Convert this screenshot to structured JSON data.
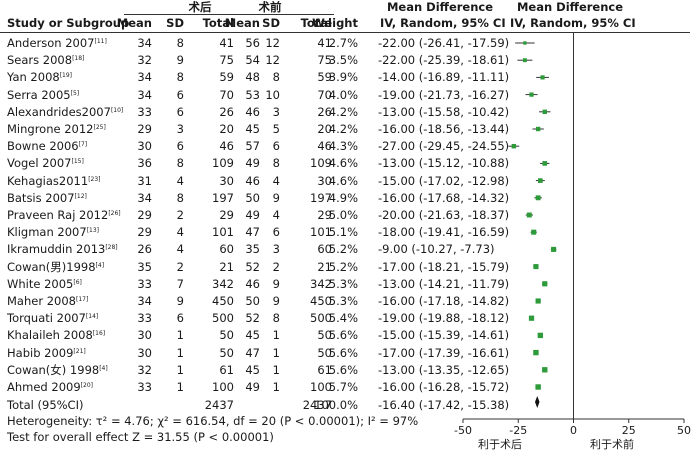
{
  "header": {
    "group_exp": "术后",
    "group_ctrl": "术前",
    "col_study": "Study or Subgroup",
    "col_mean": "Mean",
    "col_sd": "SD",
    "col_total": "Total",
    "col_weight": "Weight",
    "col_md_title": "Mean Difference",
    "col_md_sub": "IV, Random, 95% CI"
  },
  "studies": [
    {
      "name": "Anderson 2007",
      "ref": "[11]",
      "m1": "34",
      "sd1": "8",
      "n1": "41",
      "m2": "56",
      "sd2": "12",
      "n2": "41",
      "weight": "2.7%",
      "ci": "-22.00 (-26.41, -17.59)"
    },
    {
      "name": "Sears 2008",
      "ref": "[18]",
      "m1": "32",
      "sd1": "9",
      "n1": "75",
      "m2": "54",
      "sd2": "12",
      "n2": "75",
      "weight": "3.5%",
      "ci": "-22.00 (-25.39, -18.61)"
    },
    {
      "name": "Yan 2008",
      "ref": "[19]",
      "m1": "34",
      "sd1": "8",
      "n1": "59",
      "m2": "48",
      "sd2": "8",
      "n2": "59",
      "weight": "3.9%",
      "ci": "-14.00 (-16.89, -11.11)"
    },
    {
      "name": "Serra 2005",
      "ref": "[5]",
      "m1": "34",
      "sd1": "6",
      "n1": "70",
      "m2": "53",
      "sd2": "10",
      "n2": "70",
      "weight": "4.0%",
      "ci": "-19.00 (-21.73, -16.27)"
    },
    {
      "name": "Alexandrides2007",
      "ref": "[10]",
      "m1": "33",
      "sd1": "6",
      "n1": "26",
      "m2": "46",
      "sd2": "3",
      "n2": "26",
      "weight": "4.2%",
      "ci": "-13.00 (-15.58, -10.42)"
    },
    {
      "name": "Mingrone 2012",
      "ref": "[25]",
      "m1": "29",
      "sd1": "3",
      "n1": "20",
      "m2": "45",
      "sd2": "5",
      "n2": "20",
      "weight": "4.2%",
      "ci": "-16.00 (-18.56, -13.44)"
    },
    {
      "name": "Bowne 2006",
      "ref": "[7]",
      "m1": "30",
      "sd1": "6",
      "n1": "46",
      "m2": "57",
      "sd2": "6",
      "n2": "46",
      "weight": "4.3%",
      "ci": "-27.00 (-29.45, -24.55)"
    },
    {
      "name": "Vogel 2007",
      "ref": "[15]",
      "m1": "36",
      "sd1": "8",
      "n1": "109",
      "m2": "49",
      "sd2": "8",
      "n2": "109",
      "weight": "4.6%",
      "ci": "-13.00 (-15.12, -10.88)"
    },
    {
      "name": "Kehagias2011",
      "ref": "[23]",
      "m1": "31",
      "sd1": "4",
      "n1": "30",
      "m2": "46",
      "sd2": "4",
      "n2": "30",
      "weight": "4.6%",
      "ci": "-15.00 (-17.02, -12.98)"
    },
    {
      "name": "Batsis 2007",
      "ref": "[12]",
      "m1": "34",
      "sd1": "8",
      "n1": "197",
      "m2": "50",
      "sd2": "9",
      "n2": "197",
      "weight": "4.9%",
      "ci": "-16.00 (-17.68, -14.32)"
    },
    {
      "name": "Praveen Raj 2012",
      "ref": "[26]",
      "m1": "29",
      "sd1": "2",
      "n1": "29",
      "m2": "49",
      "sd2": "4",
      "n2": "29",
      "weight": "5.0%",
      "ci": "-20.00 (-21.63, -18.37)"
    },
    {
      "name": "Kligman 2007",
      "ref": "[13]",
      "m1": "29",
      "sd1": "4",
      "n1": "101",
      "m2": "47",
      "sd2": "6",
      "n2": "101",
      "weight": "5.1%",
      "ci": "-18.00 (-19.41, -16.59)"
    },
    {
      "name": "Ikramuddin 2013",
      "ref": "[28]",
      "m1": "26",
      "sd1": "4",
      "n1": "60",
      "m2": "35",
      "sd2": "3",
      "n2": "60",
      "weight": "5.2%",
      "ci": "-9.00 (-10.27, -7.73)"
    },
    {
      "name": "Cowan(男)1998",
      "ref": "[4]",
      "m1": "35",
      "sd1": "2",
      "n1": "21",
      "m2": "52",
      "sd2": "2",
      "n2": "21",
      "weight": "5.2%",
      "ci": "-17.00 (-18.21, -15.79)"
    },
    {
      "name": "White 2005",
      "ref": "[6]",
      "m1": "33",
      "sd1": "7",
      "n1": "342",
      "m2": "46",
      "sd2": "9",
      "n2": "342",
      "weight": "5.3%",
      "ci": "-13.00 (-14.21, -11.79)"
    },
    {
      "name": "Maher 2008",
      "ref": "[17]",
      "m1": "34",
      "sd1": "9",
      "n1": "450",
      "m2": "50",
      "sd2": "9",
      "n2": "450",
      "weight": "5.3%",
      "ci": "-16.00 (-17.18, -14.82)"
    },
    {
      "name": "Torquati 2007",
      "ref": "[14]",
      "m1": "33",
      "sd1": "6",
      "n1": "500",
      "m2": "52",
      "sd2": "8",
      "n2": "500",
      "weight": "5.4%",
      "ci": "-19.00 (-19.88, -18.12)"
    },
    {
      "name": "Khalaileh 2008",
      "ref": "[16]",
      "m1": "30",
      "sd1": "1",
      "n1": "50",
      "m2": "45",
      "sd2": "1",
      "n2": "50",
      "weight": "5.6%",
      "ci": "-15.00 (-15.39, -14.61)"
    },
    {
      "name": "Habib 2009",
      "ref": "[21]",
      "m1": "30",
      "sd1": "1",
      "n1": "50",
      "m2": "47",
      "sd2": "1",
      "n2": "50",
      "weight": "5.6%",
      "ci": "-17.00 (-17.39, -16.61)"
    },
    {
      "name": "Cowan(女) 1998",
      "ref": "[4]",
      "m1": "32",
      "sd1": "1",
      "n1": "61",
      "m2": "45",
      "sd2": "1",
      "n2": "61",
      "weight": "5.6%",
      "ci": "-13.00 (-13.35, -12.65)"
    },
    {
      "name": "Ahmed 2009",
      "ref": "[20]",
      "m1": "33",
      "sd1": "1",
      "n1": "100",
      "m2": "49",
      "sd2": "1",
      "n2": "100",
      "weight": "5.7%",
      "ci": "-16.00 (-16.28, -15.72)"
    }
  ],
  "total": {
    "label": "Total (95%CI)",
    "n1": "2437",
    "n2": "2437",
    "weight": "100.0%",
    "ci": "-16.40 (-17.42, -15.38)"
  },
  "footer": {
    "heterogeneity": "Heterogeneity: τ² = 4.76; χ² = 616.54, df = 20 (P < 0.00001); I² = 97%",
    "overall": "Test for overall effect Z = 31.55 (P < 0.00001)",
    "favours_left": "利于术后",
    "favours_right": "利于术前"
  },
  "chart_data": {
    "type": "forest",
    "measure": "Mean Difference, IV, Random, 95% CI",
    "xlim": [
      -50,
      50
    ],
    "ticks": [
      -50,
      -25,
      0,
      25,
      50
    ],
    "tick_labels": [
      "-50",
      "-25",
      "0",
      "25",
      "50"
    ],
    "null_line": 0,
    "marker_color": "#2e9b3a",
    "studies": [
      {
        "label": "Anderson 2007",
        "est": -22.0,
        "lo": -26.41,
        "hi": -17.59,
        "weight": 2.7
      },
      {
        "label": "Sears 2008",
        "est": -22.0,
        "lo": -25.39,
        "hi": -18.61,
        "weight": 3.5
      },
      {
        "label": "Yan 2008",
        "est": -14.0,
        "lo": -16.89,
        "hi": -11.11,
        "weight": 3.9
      },
      {
        "label": "Serra 2005",
        "est": -19.0,
        "lo": -21.73,
        "hi": -16.27,
        "weight": 4.0
      },
      {
        "label": "Alexandrides2007",
        "est": -13.0,
        "lo": -15.58,
        "hi": -10.42,
        "weight": 4.2
      },
      {
        "label": "Mingrone 2012",
        "est": -16.0,
        "lo": -18.56,
        "hi": -13.44,
        "weight": 4.2
      },
      {
        "label": "Bowne 2006",
        "est": -27.0,
        "lo": -29.45,
        "hi": -24.55,
        "weight": 4.3
      },
      {
        "label": "Vogel 2007",
        "est": -13.0,
        "lo": -15.12,
        "hi": -10.88,
        "weight": 4.6
      },
      {
        "label": "Kehagias2011",
        "est": -15.0,
        "lo": -17.02,
        "hi": -12.98,
        "weight": 4.6
      },
      {
        "label": "Batsis 2007",
        "est": -16.0,
        "lo": -17.68,
        "hi": -14.32,
        "weight": 4.9
      },
      {
        "label": "Praveen Raj 2012",
        "est": -20.0,
        "lo": -21.63,
        "hi": -18.37,
        "weight": 5.0
      },
      {
        "label": "Kligman 2007",
        "est": -18.0,
        "lo": -19.41,
        "hi": -16.59,
        "weight": 5.1
      },
      {
        "label": "Ikramuddin 2013",
        "est": -9.0,
        "lo": -10.27,
        "hi": -7.73,
        "weight": 5.2
      },
      {
        "label": "Cowan(男)1998",
        "est": -17.0,
        "lo": -18.21,
        "hi": -15.79,
        "weight": 5.2
      },
      {
        "label": "White 2005",
        "est": -13.0,
        "lo": -14.21,
        "hi": -11.79,
        "weight": 5.3
      },
      {
        "label": "Maher 2008",
        "est": -16.0,
        "lo": -17.18,
        "hi": -14.82,
        "weight": 5.3
      },
      {
        "label": "Torquati 2007",
        "est": -19.0,
        "lo": -19.88,
        "hi": -18.12,
        "weight": 5.4
      },
      {
        "label": "Khalaileh 2008",
        "est": -15.0,
        "lo": -15.39,
        "hi": -14.61,
        "weight": 5.6
      },
      {
        "label": "Habib 2009",
        "est": -17.0,
        "lo": -17.39,
        "hi": -16.61,
        "weight": 5.6
      },
      {
        "label": "Cowan(女) 1998",
        "est": -13.0,
        "lo": -13.35,
        "hi": -12.65,
        "weight": 5.6
      },
      {
        "label": "Ahmed 2009",
        "est": -16.0,
        "lo": -16.28,
        "hi": -15.72,
        "weight": 5.7
      }
    ],
    "pooled": {
      "label": "Total (95%CI)",
      "est": -16.4,
      "lo": -17.42,
      "hi": -15.38
    }
  }
}
